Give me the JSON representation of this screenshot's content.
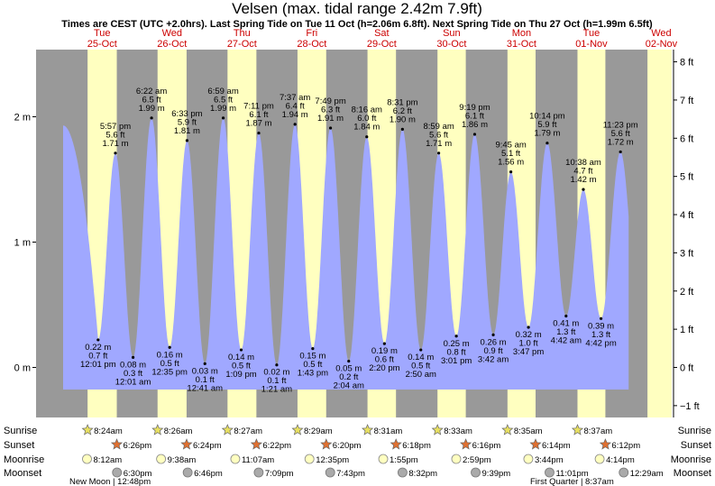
{
  "title": "Velsen (max. tidal range 2.42m 7.9ft)",
  "subtitle": "Times are CEST (UTC +2.0hrs). Last Spring Tide on Tue 11 Oct (h=2.06m 6.8ft). Next Spring Tide on Thu 27 Oct (h=1.99m 6.5ft)",
  "colors": {
    "night": "#999999",
    "day": "#ffffc0",
    "water": "#a0a8ff",
    "day_label": "#cc0000"
  },
  "chart_data": {
    "type": "area",
    "y_left": {
      "unit": "m",
      "ticks": [
        {
          "v": 0,
          "label": "0 m"
        },
        {
          "v": 1,
          "label": "1 m"
        },
        {
          "v": 2,
          "label": "2 m"
        }
      ]
    },
    "y_right": {
      "unit": "ft",
      "ticks": [
        {
          "v": -1,
          "label": "−1 ft"
        },
        {
          "v": 0,
          "label": "0 ft"
        },
        {
          "v": 1,
          "label": "1 ft"
        },
        {
          "v": 2,
          "label": "2 ft"
        },
        {
          "v": 3,
          "label": "3 ft"
        },
        {
          "v": 4,
          "label": "4 ft"
        },
        {
          "v": 5,
          "label": "5 ft"
        },
        {
          "v": 6,
          "label": "6 ft"
        },
        {
          "v": 7,
          "label": "7 ft"
        },
        {
          "v": 8,
          "label": "8 ft"
        }
      ]
    },
    "ylim_m": [
      -0.34,
      2.55
    ],
    "days": [
      {
        "dow": "Tue",
        "date": "25-Oct"
      },
      {
        "dow": "Wed",
        "date": "26-Oct"
      },
      {
        "dow": "Thu",
        "date": "27-Oct"
      },
      {
        "dow": "Fri",
        "date": "28-Oct"
      },
      {
        "dow": "Sat",
        "date": "29-Oct"
      },
      {
        "dow": "Sun",
        "date": "30-Oct"
      },
      {
        "dow": "Mon",
        "date": "31-Oct"
      },
      {
        "dow": "Tue",
        "date": "01-Nov"
      },
      {
        "dow": "Wed",
        "date": "02-Nov"
      }
    ],
    "tides": [
      {
        "day": 0,
        "time": "12:01 pm",
        "m": "0.22 m",
        "ft": "0.7 ft",
        "h": 0.22,
        "t": 12.02,
        "type": "low"
      },
      {
        "day": 0,
        "time": "5:57 pm",
        "m": "1.71 m",
        "ft": "5.6 ft",
        "h": 1.71,
        "t": 17.95,
        "type": "high"
      },
      {
        "day": 1,
        "time": "12:01 am",
        "m": "0.08 m",
        "ft": "0.3 ft",
        "h": 0.08,
        "t": 24.02,
        "type": "low"
      },
      {
        "day": 1,
        "time": "6:22 am",
        "m": "1.99 m",
        "ft": "6.5 ft",
        "h": 1.99,
        "t": 30.37,
        "type": "high"
      },
      {
        "day": 1,
        "time": "12:35 pm",
        "m": "0.16 m",
        "ft": "0.5 ft",
        "h": 0.16,
        "t": 36.58,
        "type": "low"
      },
      {
        "day": 1,
        "time": "6:33 pm",
        "m": "1.81 m",
        "ft": "5.9 ft",
        "h": 1.81,
        "t": 42.55,
        "type": "high"
      },
      {
        "day": 2,
        "time": "12:41 am",
        "m": "0.03 m",
        "ft": "0.1 ft",
        "h": 0.03,
        "t": 48.68,
        "type": "low"
      },
      {
        "day": 2,
        "time": "6:59 am",
        "m": "1.99 m",
        "ft": "6.5 ft",
        "h": 1.99,
        "t": 54.98,
        "type": "high"
      },
      {
        "day": 2,
        "time": "1:09 pm",
        "m": "0.14 m",
        "ft": "0.5 ft",
        "h": 0.14,
        "t": 61.15,
        "type": "low"
      },
      {
        "day": 2,
        "time": "7:11 pm",
        "m": "1.87 m",
        "ft": "6.1 ft",
        "h": 1.87,
        "t": 67.18,
        "type": "high"
      },
      {
        "day": 3,
        "time": "1:21 am",
        "m": "0.02 m",
        "ft": "0.1 ft",
        "h": 0.02,
        "t": 73.35,
        "type": "low"
      },
      {
        "day": 3,
        "time": "7:37 am",
        "m": "1.94 m",
        "ft": "6.4 ft",
        "h": 1.94,
        "t": 79.62,
        "type": "high"
      },
      {
        "day": 3,
        "time": "1:43 pm",
        "m": "0.15 m",
        "ft": "0.5 ft",
        "h": 0.15,
        "t": 85.72,
        "type": "low"
      },
      {
        "day": 3,
        "time": "7:49 pm",
        "m": "1.91 m",
        "ft": "6.3 ft",
        "h": 1.91,
        "t": 91.82,
        "type": "high"
      },
      {
        "day": 4,
        "time": "2:04 am",
        "m": "0.05 m",
        "ft": "0.2 ft",
        "h": 0.05,
        "t": 98.07,
        "type": "low"
      },
      {
        "day": 4,
        "time": "8:16 am",
        "m": "1.84 m",
        "ft": "6.0 ft",
        "h": 1.84,
        "t": 104.27,
        "type": "high"
      },
      {
        "day": 4,
        "time": "2:20 pm",
        "m": "0.19 m",
        "ft": "0.6 ft",
        "h": 0.19,
        "t": 110.33,
        "type": "low"
      },
      {
        "day": 4,
        "time": "8:31 pm",
        "m": "1.90 m",
        "ft": "6.2 ft",
        "h": 1.9,
        "t": 116.52,
        "type": "high"
      },
      {
        "day": 5,
        "time": "2:50 am",
        "m": "0.14 m",
        "ft": "0.5 ft",
        "h": 0.14,
        "t": 122.83,
        "type": "low"
      },
      {
        "day": 5,
        "time": "8:59 am",
        "m": "1.71 m",
        "ft": "5.6 ft",
        "h": 1.71,
        "t": 128.98,
        "type": "high"
      },
      {
        "day": 5,
        "time": "3:01 pm",
        "m": "0.25 m",
        "ft": "0.8 ft",
        "h": 0.25,
        "t": 135.02,
        "type": "low"
      },
      {
        "day": 5,
        "time": "9:19 pm",
        "m": "1.86 m",
        "ft": "6.1 ft",
        "h": 1.86,
        "t": 141.32,
        "type": "high"
      },
      {
        "day": 6,
        "time": "3:42 am",
        "m": "0.26 m",
        "ft": "0.9 ft",
        "h": 0.26,
        "t": 147.7,
        "type": "low"
      },
      {
        "day": 6,
        "time": "9:45 am",
        "m": "1.56 m",
        "ft": "5.1 ft",
        "h": 1.56,
        "t": 153.75,
        "type": "high"
      },
      {
        "day": 6,
        "time": "3:47 pm",
        "m": "0.32 m",
        "ft": "1.0 ft",
        "h": 0.32,
        "t": 159.78,
        "type": "low"
      },
      {
        "day": 6,
        "time": "10:14 pm",
        "m": "1.79 m",
        "ft": "5.9 ft",
        "h": 1.79,
        "t": 166.23,
        "type": "high"
      },
      {
        "day": 7,
        "time": "4:42 am",
        "m": "0.41 m",
        "ft": "1.3 ft",
        "h": 0.41,
        "t": 172.7,
        "type": "low"
      },
      {
        "day": 7,
        "time": "10:38 am",
        "m": "1.42 m",
        "ft": "4.7 ft",
        "h": 1.42,
        "t": 178.63,
        "type": "high"
      },
      {
        "day": 7,
        "time": "4:42 pm",
        "m": "0.39 m",
        "ft": "1.3 ft",
        "h": 0.39,
        "t": 184.7,
        "type": "low"
      },
      {
        "day": 7,
        "time": "11:23 pm",
        "m": "1.72 m",
        "ft": "5.6 ft",
        "h": 1.72,
        "t": 191.38,
        "type": "high"
      }
    ]
  },
  "rows": {
    "labels": [
      "Sunrise",
      "Sunset",
      "Moonrise",
      "Moonset"
    ],
    "sunrise": [
      "8:24am",
      "8:26am",
      "8:27am",
      "8:29am",
      "8:31am",
      "8:33am",
      "8:35am",
      "8:37am"
    ],
    "sunset": [
      "6:26pm",
      "6:24pm",
      "6:22pm",
      "6:20pm",
      "6:18pm",
      "6:16pm",
      "6:14pm",
      "6:12pm"
    ],
    "moonrise": [
      "8:12am",
      "9:38am",
      "11:07am",
      "12:35pm",
      "1:55pm",
      "2:59pm",
      "3:44pm",
      "4:14pm"
    ],
    "moonset": [
      "6:30pm",
      "6:46pm",
      "7:09pm",
      "7:43pm",
      "8:32pm",
      "9:39pm",
      "11:01pm",
      "12:29am"
    ],
    "moon_phases": [
      {
        "label": "New Moon | 12:48pm"
      },
      {
        "label": "First Quarter | 8:37am"
      }
    ]
  }
}
